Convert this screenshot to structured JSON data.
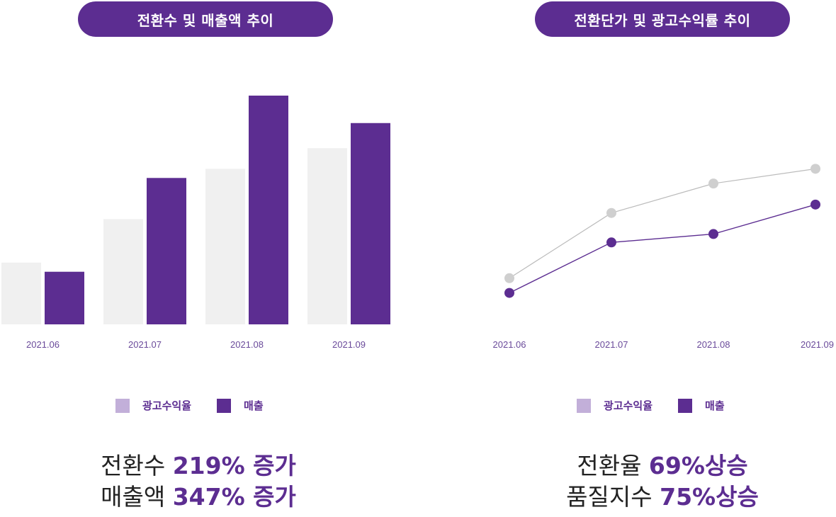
{
  "colors": {
    "accent": "#5c2d91",
    "light_bar": "#f0f0f0",
    "gray_line": "#bbbbbb",
    "gray_point": "#cfcfcf",
    "legend_light": "#c2afd9"
  },
  "left": {
    "title": "전환수 및 매출액 추이",
    "legend": [
      {
        "label": "광고수익율",
        "color": "#c2afd9"
      },
      {
        "label": "매출",
        "color": "#5c2d91"
      }
    ],
    "summary": [
      {
        "prefix": "전환수 ",
        "highlight": "219% 증가"
      },
      {
        "prefix": "매출액 ",
        "highlight": "347% 증가"
      }
    ]
  },
  "right": {
    "title": "전환단가 및 광고수익률 추이",
    "legend": [
      {
        "label": "광고수익율",
        "color": "#c2afd9"
      },
      {
        "label": "매출",
        "color": "#5c2d91"
      }
    ],
    "summary": [
      {
        "prefix": "전환율 ",
        "highlight": "69%상승"
      },
      {
        "prefix": "품질지수 ",
        "highlight": "75%상승"
      }
    ]
  },
  "chart_data": [
    {
      "type": "bar",
      "title": "전환수 및 매출액 추이",
      "categories": [
        "2021.06",
        "2021.07",
        "2021.08",
        "2021.09"
      ],
      "ylim": [
        0,
        100
      ],
      "series": [
        {
          "name": "광고수익율",
          "color": "#f0f0f0",
          "values": [
            27,
            46,
            68,
            77
          ]
        },
        {
          "name": "매출",
          "color": "#5c2d91",
          "values": [
            23,
            64,
            100,
            88
          ]
        }
      ]
    },
    {
      "type": "line",
      "title": "전환단가 및 광고수익률 추이",
      "categories": [
        "2021.06",
        "2021.07",
        "2021.08",
        "2021.09"
      ],
      "ylim": [
        0,
        100
      ],
      "series": [
        {
          "name": "광고수익율",
          "color": "#bbbbbb",
          "values": [
            26,
            57,
            71,
            78
          ]
        },
        {
          "name": "매출",
          "color": "#5c2d91",
          "values": [
            19,
            43,
            47,
            61
          ]
        }
      ]
    }
  ]
}
